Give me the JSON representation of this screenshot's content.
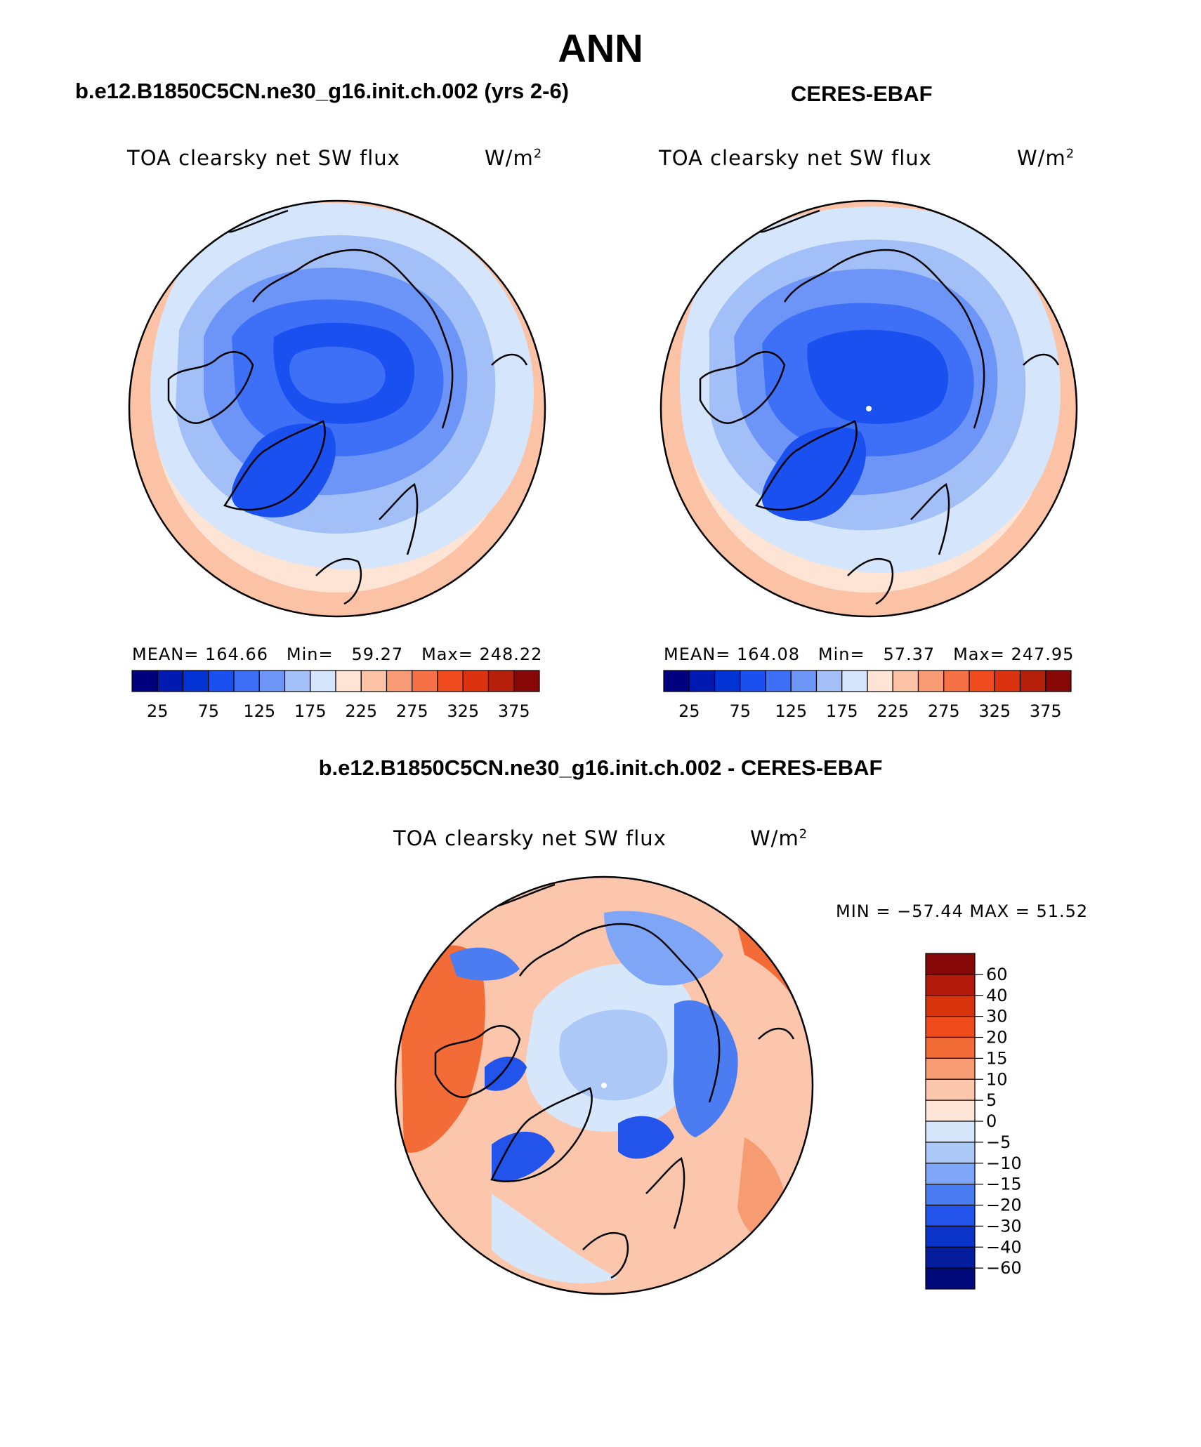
{
  "main_title": "ANN",
  "left_panel": {
    "case_title": "b.e12.B1850C5CN.ne30_g16.init.ch.002 (yrs 2-6)",
    "variable": "TOA clearsky net SW flux",
    "units": "W/m",
    "units_exp": "2",
    "mean_label": "MEAN=",
    "mean": "164.66",
    "min_label": "Min=",
    "min": "59.27",
    "max_label": "Max=",
    "max": "248.22"
  },
  "right_panel": {
    "case_title": "CERES-EBAF",
    "variable": "TOA clearsky net SW flux",
    "units": "W/m",
    "units_exp": "2",
    "mean_label": "MEAN=",
    "mean": "164.08",
    "min_label": "Min=",
    "min": "57.37",
    "max_label": "Max=",
    "max": "247.95"
  },
  "abs_colorbar": {
    "labels": [
      "25",
      "75",
      "125",
      "175",
      "225",
      "275",
      "325",
      "375"
    ],
    "colors": [
      "#00007f",
      "#0019b0",
      "#0032d4",
      "#1a4ff0",
      "#3d6ff7",
      "#6d95f8",
      "#a3bff7",
      "#d5e5fb",
      "#fde4d4",
      "#fbc2a6",
      "#f89b74",
      "#f57045",
      "#f04a1f",
      "#db3210",
      "#b4200a",
      "#870606"
    ]
  },
  "diff_panel": {
    "title": "b.e12.B1850C5CN.ne30_g16.init.ch.002 - CERES-EBAF",
    "variable": "TOA clearsky net SW flux",
    "units": "W/m",
    "units_exp": "2",
    "minmax": "MIN = −57.44 MAX =   51.52"
  },
  "diff_colorbar": {
    "labels": [
      "60",
      "40",
      "30",
      "20",
      "15",
      "10",
      "5",
      "0",
      "−5",
      "−10",
      "−15",
      "−20",
      "−30",
      "−40",
      "−60"
    ],
    "colors": [
      "#860808",
      "#b31a0a",
      "#d7330d",
      "#ef4a1a",
      "#f36b36",
      "#f79b72",
      "#fbc6ab",
      "#fde6d7",
      "#d6e6fb",
      "#abc8f7",
      "#7fa6f6",
      "#4b7cf2",
      "#2253ea",
      "#0a33c9",
      "#031d9c",
      "#00087a"
    ]
  },
  "chart_data": [
    {
      "type": "heatmap",
      "title": "TOA clearsky net SW flux",
      "subtitle": "b.e12.B1850C5CN.ne30_g16.init.ch.002 (yrs 2-6)",
      "units": "W/m2",
      "projection": "north polar stereographic",
      "mean": 164.66,
      "min": 59.27,
      "max": 248.22,
      "levels": [
        25,
        50,
        75,
        100,
        125,
        150,
        175,
        200,
        225,
        250,
        275,
        300,
        325,
        350,
        375
      ]
    },
    {
      "type": "heatmap",
      "title": "TOA clearsky net SW flux",
      "subtitle": "CERES-EBAF",
      "units": "W/m2",
      "projection": "north polar stereographic",
      "mean": 164.08,
      "min": 57.37,
      "max": 247.95,
      "levels": [
        25,
        50,
        75,
        100,
        125,
        150,
        175,
        200,
        225,
        250,
        275,
        300,
        325,
        350,
        375
      ]
    },
    {
      "type": "heatmap",
      "title": "TOA clearsky net SW flux",
      "subtitle": "b.e12.B1850C5CN.ne30_g16.init.ch.002 - CERES-EBAF",
      "units": "W/m2",
      "projection": "north polar stereographic",
      "min": -57.44,
      "max": 51.52,
      "levels": [
        -60,
        -40,
        -30,
        -20,
        -15,
        -10,
        -5,
        0,
        5,
        10,
        15,
        20,
        30,
        40,
        60
      ]
    }
  ]
}
